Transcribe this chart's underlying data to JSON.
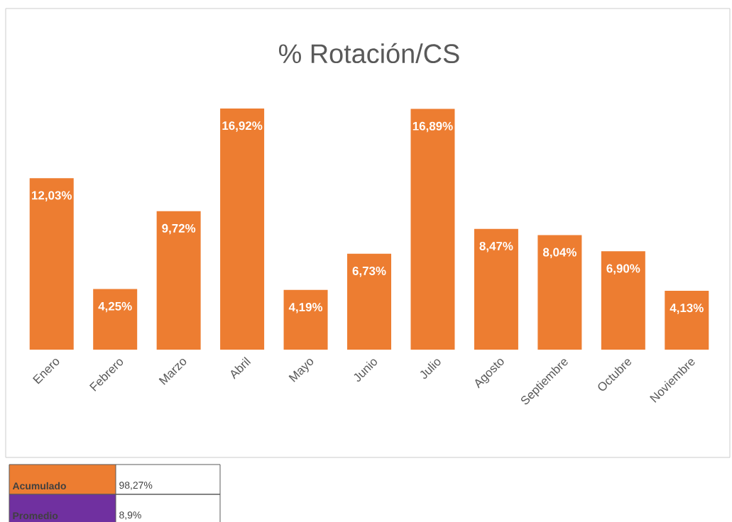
{
  "chart_data": {
    "type": "bar",
    "title": "% Rotación/CS",
    "categories": [
      "Enero",
      "Febrero",
      "Marzo",
      "Abril",
      "Mayo",
      "Junio",
      "Julio",
      "Agosto",
      "Septiembre",
      "Octubre",
      "Noviembre"
    ],
    "values": [
      12.03,
      4.25,
      9.72,
      16.92,
      4.19,
      6.73,
      16.89,
      8.47,
      8.04,
      6.9,
      4.13
    ],
    "value_labels": [
      "12,03%",
      "4,25%",
      "9,72%",
      "16,92%",
      "4,19%",
      "6,73%",
      "16,89%",
      "8,47%",
      "8,04%",
      "6,90%",
      "4,13%"
    ],
    "color": "#ed7d31",
    "annotations": [
      "Acumulado",
      "98,27%",
      "Promedio",
      "8,9%"
    ]
  }
}
